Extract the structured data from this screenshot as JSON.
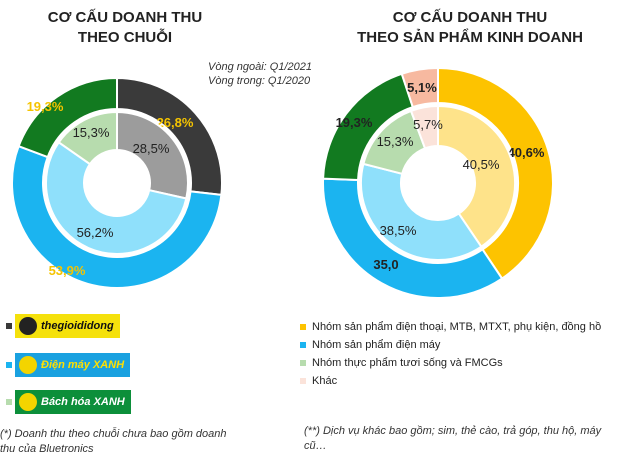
{
  "chart_data": [
    {
      "type": "donut",
      "title_lines": [
        "CƠ CẤU DOANH THU",
        "THEO CHUỖI"
      ],
      "ring_note": [
        "Vòng ngoài: Q1/2021",
        "Vòng trong: Q1/2020"
      ],
      "categories": [
        "thegioididong",
        "Điện máy XANH",
        "Bách hóa XANH"
      ],
      "colors": [
        "#3a3a3a",
        "#1bb4f0",
        "#127a20"
      ],
      "inner_colors": [
        "#9c9c9c",
        "#8fe0fb",
        "#b7dcae"
      ],
      "series": [
        {
          "name": "Q1/2021 (outer)",
          "values": [
            26.8,
            53.9,
            19.3
          ],
          "labels": [
            "26,8%",
            "53,9%",
            "19,3%"
          ]
        },
        {
          "name": "Q1/2020 (inner)",
          "values": [
            28.5,
            56.2,
            15.3
          ],
          "labels": [
            "28,5%",
            "56,2%",
            "15,3%"
          ]
        }
      ]
    },
    {
      "type": "donut",
      "title_lines": [
        "CƠ CẤU DOANH THU",
        "THEO SẢN PHẨM KINH DOANH"
      ],
      "categories": [
        "Nhóm sản phẩm điện thoại, MTB, MTXT, phụ kiện, đồng hồ",
        "Nhóm sản phẩm điện máy",
        "Nhóm thực phẩm tươi sống và FMCGs",
        "Khác"
      ],
      "colors": [
        "#fdc300",
        "#1bb4f0",
        "#127a20",
        "#f7b9a0"
      ],
      "inner_colors": [
        "#fee38a",
        "#8fe0fb",
        "#b7dcae",
        "#fbe3da"
      ],
      "series": [
        {
          "name": "Q1/2021 (outer)",
          "values": [
            40.6,
            35.0,
            19.3,
            5.1
          ],
          "labels": [
            "40,6%",
            "35,0",
            "19,3%",
            "5,1%"
          ]
        },
        {
          "name": "Q1/2020 (inner)",
          "values": [
            40.5,
            38.5,
            15.3,
            5.7
          ],
          "labels": [
            "40,5%",
            "38,5%",
            "15,3%",
            "5,7%"
          ]
        }
      ]
    }
  ],
  "legend_left": [
    {
      "brand": "thegioididong",
      "text": "thegioididong"
    },
    {
      "brand": "dienmayxanh",
      "text": "Điện máy XANH"
    },
    {
      "brand": "bachhoaxanh",
      "text": "Bách hóa XANH"
    }
  ],
  "legend_right": [
    "Nhóm sản phẩm điện thoại, MTB, MTXT, phụ kiện, đồng hồ",
    "Nhóm sản phẩm điện máy",
    "Nhóm thực phẩm tươi sống và FMCGs",
    "Khác"
  ],
  "footnotes": {
    "left": "(*) Doanh thu theo chuỗi chưa bao gồm doanh thu của Bluetronics",
    "right": "(**) Dịch vụ khác bao gồm; sim, thẻ cào, trả góp, thu hộ, máy cũ…"
  }
}
